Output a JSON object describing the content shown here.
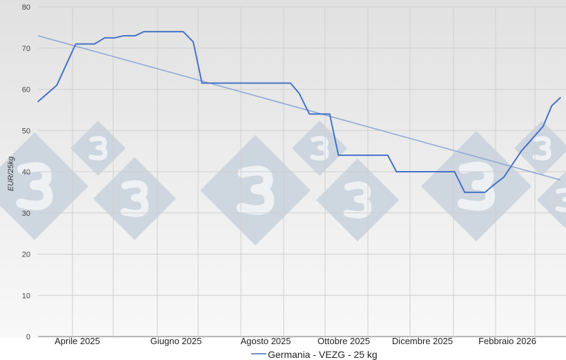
{
  "chart_data": {
    "type": "line",
    "title": "",
    "xlabel": "",
    "ylabel": "EUR/25kg",
    "ylim": [
      0,
      80
    ],
    "yticks": [
      0,
      10,
      20,
      30,
      40,
      50,
      60,
      70,
      80
    ],
    "xlim": [
      "2025-03-15",
      "2026-03-10"
    ],
    "xtick_labels": [
      "Aprile 2025",
      "Giugno 2025",
      "Agosto 2025",
      "Ottobre 2025",
      "Dicembre 2025",
      "Febbraio 2026"
    ],
    "grid": true,
    "legend_position": "bottom",
    "series": [
      {
        "name": "Germania - VEZG - 25 kg",
        "color": "#4472c4",
        "points": [
          [
            "2025-03-15",
            57
          ],
          [
            "2025-03-28",
            61
          ],
          [
            "2025-04-10",
            71
          ],
          [
            "2025-04-23",
            71
          ],
          [
            "2025-04-30",
            72.5
          ],
          [
            "2025-05-07",
            72.5
          ],
          [
            "2025-05-13",
            73
          ],
          [
            "2025-05-21",
            73
          ],
          [
            "2025-05-27",
            74
          ],
          [
            "2025-06-23",
            74
          ],
          [
            "2025-06-30",
            71.5
          ],
          [
            "2025-07-06",
            61.5
          ],
          [
            "2025-09-05",
            61.5
          ],
          [
            "2025-09-11",
            59
          ],
          [
            "2025-09-18",
            54
          ],
          [
            "2025-10-02",
            54
          ],
          [
            "2025-10-08",
            44
          ],
          [
            "2025-11-11",
            44
          ],
          [
            "2025-11-17",
            40
          ],
          [
            "2025-12-27",
            40
          ],
          [
            "2026-01-03",
            35
          ],
          [
            "2026-01-17",
            35
          ],
          [
            "2026-01-22",
            36.5
          ],
          [
            "2026-01-30",
            38.7
          ],
          [
            "2026-02-11",
            45
          ],
          [
            "2026-02-26",
            51
          ],
          [
            "2026-03-04",
            56
          ],
          [
            "2026-03-10",
            58
          ]
        ]
      }
    ],
    "trendline": {
      "type": "linear",
      "color": "#8fa9d6",
      "points": [
        [
          "2025-03-15",
          73
        ],
        [
          "2026-03-10",
          38
        ]
      ]
    },
    "watermark": "3"
  }
}
